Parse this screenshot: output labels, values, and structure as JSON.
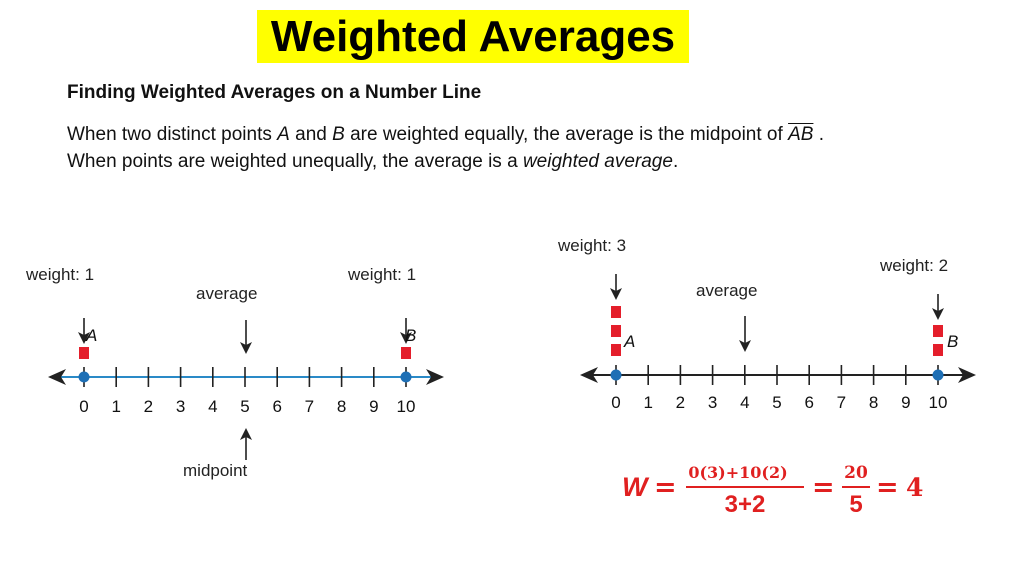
{
  "title": "Weighted Averages",
  "subtitle": "Finding Weighted Averages on a Number Line",
  "paragraph": {
    "line1_pre": "When two distinct points ",
    "A": "A",
    "and": " and ",
    "B": "B",
    "line1_post": " are weighted equally, the average is the midpoint of ",
    "segment": "AB",
    "period": " .",
    "line2_pre": "When points are weighted unequally, the average is a ",
    "line2_em": "weighted average",
    "line2_post": "."
  },
  "diagram_left": {
    "ticks": [
      "0",
      "1",
      "2",
      "3",
      "4",
      "5",
      "6",
      "7",
      "8",
      "9",
      "10"
    ],
    "point_a_label": "A",
    "point_b_label": "B",
    "weight_a": "weight: 1",
    "weight_b": "weight: 1",
    "average_label": "average",
    "midpoint_label": "midpoint",
    "weights": {
      "a": 1,
      "b": 1
    },
    "average_value": 5,
    "line_color": "#2a8ac7",
    "point_color": "#1e6fb5",
    "weight_color": "#e41e2b"
  },
  "diagram_right": {
    "ticks": [
      "0",
      "1",
      "2",
      "3",
      "4",
      "5",
      "6",
      "7",
      "8",
      "9",
      "10"
    ],
    "point_a_label": "A",
    "point_b_label": "B",
    "weight_a": "weight: 3",
    "weight_b": "weight: 2",
    "average_label": "average",
    "weights": {
      "a": 3,
      "b": 2
    },
    "average_value": 4,
    "line_color": "#222222",
    "point_color": "#1e6fb5",
    "weight_color": "#e41e2b"
  },
  "formula": {
    "lhs": "W",
    "eq": "=",
    "num1": "0(3)+10(2)",
    "den1": "3+2",
    "num2": "20",
    "den2": "5",
    "result": "4",
    "color": "#e02020"
  }
}
